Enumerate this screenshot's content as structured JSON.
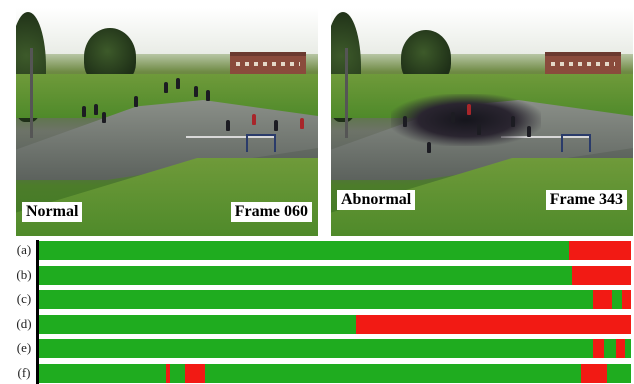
{
  "frames": [
    {
      "id": "left",
      "caption": "Normal",
      "frame_label": "Frame 060"
    },
    {
      "id": "right",
      "caption": "Abnormal",
      "frame_label": "Frame 343"
    }
  ],
  "colors": {
    "normal": "#1fac1f",
    "abnormal": "#f21a14"
  },
  "bars": [
    {
      "label": "(a)",
      "segments": [
        {
          "state": "normal",
          "from": 0.0,
          "to": 0.895
        },
        {
          "state": "abnormal",
          "from": 0.895,
          "to": 1.0
        }
      ]
    },
    {
      "label": "(b)",
      "segments": [
        {
          "state": "normal",
          "from": 0.0,
          "to": 0.9
        },
        {
          "state": "abnormal",
          "from": 0.9,
          "to": 1.0
        }
      ]
    },
    {
      "label": "(c)",
      "segments": [
        {
          "state": "normal",
          "from": 0.0,
          "to": 0.935
        },
        {
          "state": "abnormal",
          "from": 0.935,
          "to": 0.968
        },
        {
          "state": "normal",
          "from": 0.968,
          "to": 0.985
        },
        {
          "state": "abnormal",
          "from": 0.985,
          "to": 1.0
        }
      ]
    },
    {
      "label": "(d)",
      "segments": [
        {
          "state": "normal",
          "from": 0.0,
          "to": 0.535
        },
        {
          "state": "abnormal",
          "from": 0.535,
          "to": 1.0
        }
      ]
    },
    {
      "label": "(e)",
      "segments": [
        {
          "state": "normal",
          "from": 0.0,
          "to": 0.935
        },
        {
          "state": "abnormal",
          "from": 0.935,
          "to": 0.955
        },
        {
          "state": "normal",
          "from": 0.955,
          "to": 0.975
        },
        {
          "state": "abnormal",
          "from": 0.975,
          "to": 0.99
        },
        {
          "state": "normal",
          "from": 0.99,
          "to": 1.0
        }
      ]
    },
    {
      "label": "(f)",
      "segments": [
        {
          "state": "normal",
          "from": 0.0,
          "to": 0.215
        },
        {
          "state": "abnormal",
          "from": 0.215,
          "to": 0.222
        },
        {
          "state": "normal",
          "from": 0.222,
          "to": 0.247
        },
        {
          "state": "abnormal",
          "from": 0.247,
          "to": 0.28
        },
        {
          "state": "normal",
          "from": 0.28,
          "to": 0.915
        },
        {
          "state": "abnormal",
          "from": 0.915,
          "to": 0.96
        },
        {
          "state": "normal",
          "from": 0.96,
          "to": 1.0
        }
      ]
    }
  ]
}
